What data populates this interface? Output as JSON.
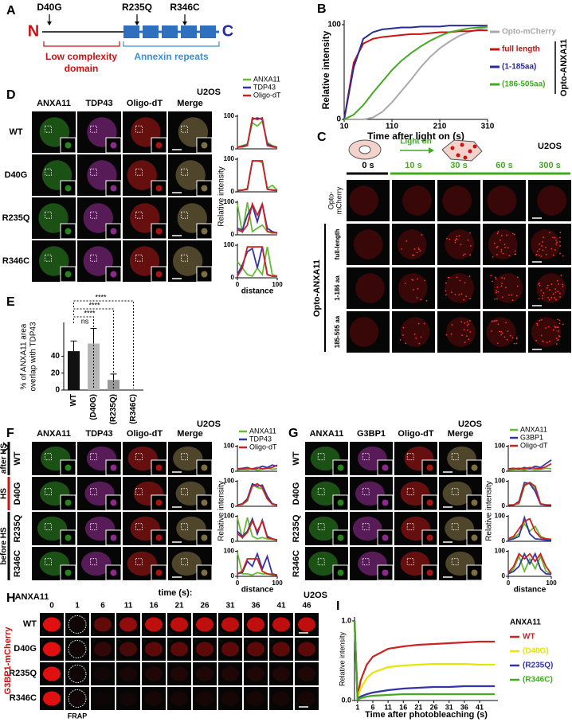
{
  "A": {
    "label": "A",
    "n_term": "N",
    "c_term": "C",
    "mutations": [
      "D40G",
      "R235Q",
      "R346C"
    ],
    "low_complexity": [
      "Low complexity",
      "domain"
    ],
    "annexin": "Annexin repeats"
  },
  "B": {
    "label": "B",
    "group": "Opto-ANXA11",
    "chart": {
      "type": "line",
      "x_label": "Time after light on (s)",
      "y_label": "Relative intensity",
      "x": [
        10,
        30,
        50,
        70,
        90,
        110,
        130,
        150,
        170,
        190,
        210,
        230,
        250,
        270,
        290,
        310
      ],
      "xlim": [
        10,
        310
      ],
      "xticks": [
        10,
        110,
        210,
        310
      ],
      "ylim": [
        0,
        105
      ],
      "yticks": [
        0,
        100
      ],
      "series": [
        {
          "name": "Opto-mCherry",
          "color": "#aaaaaa",
          "values": [
            0,
            0,
            0,
            2,
            8,
            18,
            30,
            42,
            55,
            66,
            75,
            82,
            88,
            92,
            95,
            97
          ]
        },
        {
          "name": "full length",
          "color": "#cc1111",
          "values": [
            0,
            60,
            80,
            85,
            87,
            88,
            89,
            90,
            90,
            91,
            92,
            92,
            93,
            93,
            94,
            94
          ]
        },
        {
          "name": "(1-185aa)",
          "color": "#2a2a99",
          "values": [
            0,
            55,
            85,
            92,
            95,
            96,
            97,
            97,
            98,
            98,
            98,
            99,
            99,
            99,
            99,
            99
          ]
        },
        {
          "name": "(186-505aa)",
          "color": "#44aa22",
          "values": [
            0,
            5,
            15,
            28,
            40,
            52,
            62,
            70,
            77,
            83,
            88,
            92,
            94,
            96,
            97,
            98
          ]
        }
      ]
    }
  },
  "C": {
    "label": "C",
    "light_on": "Light on",
    "cell_line": "U2OS",
    "times": [
      "0 s",
      "10 s",
      "30 s",
      "60 s",
      "300 s"
    ],
    "control": [
      "Opto-",
      "mCherry"
    ],
    "group": "Opto-ANXA11",
    "constructs": [
      "full-length",
      "1-186 aa",
      "185-505 aa"
    ]
  },
  "D": {
    "label": "D",
    "columns": [
      "ANXA11",
      "TDP43",
      "Oligo-dT",
      "Merge"
    ],
    "cell_line": "U2OS",
    "rows": [
      "WT",
      "D40G",
      "R235Q",
      "R346C"
    ],
    "legend": [
      {
        "name": "ANXA11",
        "color": "#66bb33"
      },
      {
        "name": "TDP43",
        "color": "#3333aa"
      },
      {
        "name": "Oligo-dT",
        "color": "#cc2222"
      }
    ],
    "y_label": "Relative intensity",
    "x_label": "distance",
    "profile_x": [
      0,
      12.5,
      25,
      37.5,
      50,
      62.5,
      75,
      87.5,
      100
    ],
    "xlim": [
      0,
      100
    ],
    "ylim": [
      0,
      105
    ],
    "xticks": [
      0,
      100
    ],
    "yticks": [
      0,
      100
    ],
    "profiles": [
      [
        [
          5,
          10,
          15,
          80,
          70,
          85,
          20,
          10,
          5
        ],
        [
          5,
          8,
          12,
          90,
          95,
          90,
          15,
          8,
          5
        ],
        [
          5,
          6,
          10,
          95,
          90,
          95,
          10,
          6,
          4
        ]
      ],
      [
        [
          5,
          6,
          10,
          95,
          95,
          90,
          10,
          20,
          5
        ],
        [
          4,
          5,
          8,
          95,
          95,
          95,
          8,
          6,
          4
        ],
        [
          4,
          5,
          8,
          95,
          95,
          95,
          8,
          5,
          4
        ]
      ],
      [
        [
          95,
          5,
          100,
          10,
          20,
          30,
          10,
          5,
          8
        ],
        [
          20,
          15,
          60,
          90,
          40,
          95,
          20,
          10,
          5
        ],
        [
          15,
          10,
          30,
          95,
          60,
          95,
          10,
          8,
          5
        ]
      ],
      [
        [
          50,
          30,
          10,
          5,
          30,
          10,
          95,
          10,
          5
        ],
        [
          10,
          40,
          80,
          90,
          30,
          95,
          10,
          5,
          5
        ],
        [
          5,
          30,
          95,
          95,
          95,
          95,
          10,
          5,
          5
        ]
      ]
    ]
  },
  "E": {
    "label": "E",
    "chart": {
      "type": "bar",
      "y_label": [
        "% of ANXA11 area",
        "overlap with TDP43"
      ],
      "categories": [
        "WT",
        "(D40G)",
        "(R235Q)",
        "(R346C)"
      ],
      "values": [
        46,
        55,
        12,
        0
      ],
      "errors": [
        12,
        18,
        7,
        0
      ],
      "colors": [
        "#111111",
        "#b5b5b5",
        "#999999",
        "#999999"
      ],
      "ylim": [
        0,
        80
      ],
      "yticks": [
        0,
        20,
        40
      ]
    },
    "significance": [
      "ns",
      "****",
      "****",
      "****"
    ]
  },
  "F": {
    "label": "F",
    "columns": [
      "ANXA11",
      "TDP43",
      "Oligo-dT",
      "Merge"
    ],
    "cell_line": "U2OS",
    "rows": [
      "WT",
      "D40G",
      "R235Q",
      "R346C"
    ],
    "conditions": [
      "after HS",
      "HS",
      "before HS"
    ],
    "legend": [
      {
        "name": "ANXA11",
        "color": "#66bb33"
      },
      {
        "name": "TDP43",
        "color": "#3333aa"
      },
      {
        "name": "Oligo-dT",
        "color": "#cc2222"
      }
    ],
    "y_label": "Relative intensity",
    "x_label": "distance",
    "profile_x": [
      0,
      12.5,
      25,
      37.5,
      50,
      62.5,
      75,
      87.5,
      100
    ],
    "xlim": [
      0,
      100
    ],
    "ylim": [
      0,
      105
    ],
    "xticks": [
      0,
      100
    ],
    "yticks": [
      0,
      100
    ],
    "profiles": [
      [
        [
          5,
          8,
          6,
          10,
          5,
          8,
          12,
          8,
          10
        ],
        [
          10,
          12,
          15,
          8,
          12,
          20,
          15,
          25,
          20
        ],
        [
          10,
          8,
          12,
          10,
          15,
          10,
          12,
          15,
          25
        ]
      ],
      [
        [
          5,
          8,
          20,
          85,
          75,
          70,
          30,
          10,
          5
        ],
        [
          5,
          10,
          30,
          90,
          80,
          85,
          40,
          10,
          5
        ],
        [
          5,
          8,
          25,
          80,
          90,
          75,
          30,
          8,
          5
        ]
      ],
      [
        [
          95,
          10,
          95,
          20,
          10,
          15,
          10,
          8,
          5
        ],
        [
          40,
          20,
          40,
          90,
          30,
          85,
          20,
          10,
          5
        ],
        [
          30,
          15,
          35,
          80,
          40,
          80,
          15,
          10,
          5
        ]
      ],
      [
        [
          95,
          10,
          10,
          5,
          15,
          10,
          10,
          5,
          5
        ],
        [
          10,
          15,
          60,
          40,
          90,
          30,
          80,
          10,
          5
        ],
        [
          10,
          20,
          70,
          70,
          70,
          20,
          10,
          8,
          5
        ]
      ]
    ]
  },
  "G": {
    "label": "G",
    "columns": [
      "ANXA11",
      "G3BP1",
      "Oligo-dT",
      "Merge"
    ],
    "cell_line": "U2OS",
    "rows": [
      "WT",
      "D40G",
      "R235Q",
      "R346C"
    ],
    "legend": [
      {
        "name": "ANXA11",
        "color": "#66bb33"
      },
      {
        "name": "G3BP1",
        "color": "#3333aa"
      },
      {
        "name": "Oligo-dT",
        "color": "#cc2222"
      }
    ],
    "y_label": "Relative intensity",
    "x_label": "distance",
    "profile_x": [
      0,
      12.5,
      25,
      37.5,
      50,
      62.5,
      75,
      87.5,
      100
    ],
    "xlim": [
      0,
      100
    ],
    "ylim": [
      0,
      105
    ],
    "xticks": [
      0,
      100
    ],
    "yticks": [
      0,
      100
    ],
    "profiles": [
      [
        [
          5,
          6,
          8,
          5,
          10,
          6,
          8,
          12,
          10
        ],
        [
          10,
          12,
          8,
          15,
          10,
          20,
          15,
          30,
          45
        ],
        [
          8,
          10,
          12,
          10,
          15,
          12,
          10,
          18,
          30
        ]
      ],
      [
        [
          5,
          6,
          10,
          80,
          95,
          70,
          10,
          6,
          5
        ],
        [
          5,
          5,
          20,
          95,
          90,
          60,
          8,
          5,
          5
        ],
        [
          5,
          6,
          15,
          85,
          95,
          80,
          10,
          6,
          5
        ]
      ],
      [
        [
          10,
          15,
          30,
          70,
          40,
          60,
          20,
          10,
          8
        ],
        [
          5,
          10,
          20,
          95,
          30,
          10,
          8,
          5,
          5
        ],
        [
          10,
          20,
          50,
          80,
          90,
          40,
          15,
          10,
          8
        ]
      ],
      [
        [
          10,
          30,
          80,
          20,
          70,
          30,
          80,
          20,
          10
        ],
        [
          10,
          20,
          40,
          90,
          50,
          90,
          30,
          10,
          8
        ],
        [
          15,
          40,
          90,
          70,
          90,
          60,
          90,
          40,
          10
        ]
      ]
    ]
  },
  "H": {
    "label": "H",
    "protein": "ANXA11",
    "time_label": "time (s):",
    "times": [
      0,
      1,
      6,
      11,
      16,
      21,
      26,
      31,
      36,
      41,
      46
    ],
    "cell_line": "U2OS",
    "rows": [
      "WT",
      "D40G",
      "R235Q",
      "R346C"
    ],
    "reporter": "G3BP1-mCherry",
    "frap": "FRAP"
  },
  "I": {
    "label": "I",
    "legend_title": "ANXA11",
    "chart": {
      "type": "line",
      "x_label": "Time after photobleaching (s)",
      "y_label": "Relative intensity",
      "x": [
        0,
        1,
        2,
        4,
        6,
        11,
        16,
        21,
        26,
        31,
        36,
        41,
        46
      ],
      "xlim": [
        0,
        47
      ],
      "xticks": [
        1,
        6,
        11,
        16,
        21,
        26,
        31,
        36,
        41
      ],
      "ylim": [
        0,
        1.05
      ],
      "yticks": [
        {
          "value": 0,
          "label": "0.0"
        },
        {
          "value": 1,
          "label": "1.0"
        }
      ],
      "series": [
        {
          "name": "WT",
          "color": "#cc2222",
          "values": [
            1,
            0.05,
            0.25,
            0.45,
            0.55,
            0.65,
            0.68,
            0.7,
            0.71,
            0.72,
            0.73,
            0.74,
            0.74
          ]
        },
        {
          "name": "(D40G)",
          "color": "#e6e600",
          "values": [
            1,
            0.03,
            0.15,
            0.28,
            0.35,
            0.42,
            0.44,
            0.45,
            0.46,
            0.46,
            0.46,
            0.45,
            0.45
          ]
        },
        {
          "name": "(R235Q)",
          "color": "#3333aa",
          "values": [
            1,
            0.02,
            0.05,
            0.08,
            0.1,
            0.13,
            0.15,
            0.16,
            0.17,
            0.17,
            0.18,
            0.18,
            0.18
          ]
        },
        {
          "name": "(R346C)",
          "color": "#44aa22",
          "values": [
            1,
            0.01,
            0.03,
            0.05,
            0.06,
            0.07,
            0.08,
            0.08,
            0.08,
            0.08,
            0.08,
            0.08,
            0.08
          ]
        }
      ]
    }
  }
}
